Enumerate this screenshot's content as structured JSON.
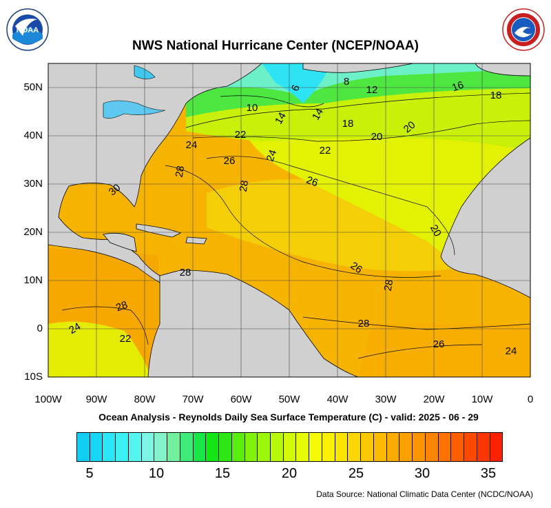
{
  "page_title": "NWS National Hurricane Center (NCEP/NOAA)",
  "logos": {
    "left": "noaa-logo",
    "left_text": "NOAA",
    "right": "nws-logo"
  },
  "map": {
    "lat_labels": [
      "50N",
      "40N",
      "30N",
      "20N",
      "10N",
      "0",
      "10S"
    ],
    "lon_labels": [
      "100W",
      "90W",
      "80W",
      "70W",
      "60W",
      "50W",
      "40W",
      "30W",
      "20W",
      "10W",
      "0"
    ],
    "contour_labels": [
      "8",
      "6",
      "12",
      "16",
      "18",
      "10",
      "14",
      "14",
      "18",
      "20",
      "20",
      "22",
      "24",
      "22",
      "24",
      "26",
      "28",
      "26",
      "30",
      "28",
      "20",
      "26",
      "28",
      "28",
      "28",
      "24",
      "22",
      "28",
      "26",
      "24"
    ]
  },
  "subtitle": "Ocean Analysis - Reynolds Daily Sea Surface Temperature (C) - valid: 2025 - 06 - 29",
  "colorbar": {
    "ticks": [
      "5",
      "10",
      "15",
      "20",
      "25",
      "30",
      "35"
    ],
    "colors": [
      "#12cdf2",
      "#18d6f6",
      "#2ae6f6",
      "#3af0f2",
      "#55f4ee",
      "#7cf6e4",
      "#84f2c8",
      "#70f09a",
      "#40ea78",
      "#16e646",
      "#12e614",
      "#2ee614",
      "#5aee10",
      "#80f20c",
      "#9cf60a",
      "#baf80a",
      "#d2fa08",
      "#e6fc06",
      "#f6fa04",
      "#fcf002",
      "#fce402",
      "#fcd602",
      "#fcc802",
      "#fcba02",
      "#fcac00",
      "#fca000",
      "#fc9400",
      "#fc8400",
      "#fc7200",
      "#fc5e00",
      "#fc4a00",
      "#fc3600",
      "#fc2200"
    ]
  },
  "source": "Data Source: National Climatic Data Center (NCDC/NOAA)"
}
